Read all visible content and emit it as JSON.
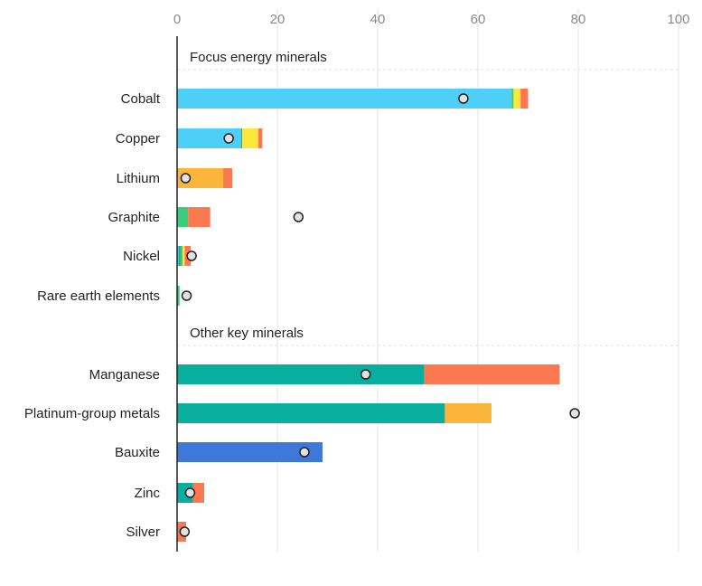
{
  "chart_data": {
    "type": "bar",
    "orientation": "horizontal",
    "stacked": true,
    "title": "",
    "xlabel": "",
    "ylabel": "",
    "xlim": [
      0,
      100
    ],
    "x_ticks": [
      "0",
      "20",
      "40",
      "60",
      "80",
      "100"
    ],
    "x_tick_values": [
      0,
      20,
      40,
      60,
      80,
      100
    ],
    "grid": true,
    "legend": "none",
    "colors": {
      "c1": "#4dcff8",
      "c2": "#0aae9f",
      "c3": "#38cf7c",
      "c4": "#fce83a",
      "c5": "#fbb53a",
      "c6": "#fb7850",
      "c7": "#3e78d8",
      "marker_fill": "#e2e2e2",
      "marker_stroke": "#222222",
      "grid": "#e3e3e3",
      "axis": "#222222"
    },
    "groups": [
      {
        "label": "Focus energy minerals",
        "items": [
          {
            "label": "Cobalt",
            "segments": [
              {
                "color": "c1",
                "value": 66.7
              },
              {
                "color": "c3",
                "value": 0.4
              },
              {
                "color": "c4",
                "value": 1.4
              },
              {
                "color": "c6",
                "value": 1.5
              }
            ],
            "marker": 57.1
          },
          {
            "label": "Copper",
            "segments": [
              {
                "color": "c1",
                "value": 12.8
              },
              {
                "color": "c2",
                "value": 0.2
              },
              {
                "color": "c4",
                "value": 3.2
              },
              {
                "color": "c6",
                "value": 0.8
              }
            ],
            "marker": 10.3
          },
          {
            "label": "Lithium",
            "segments": [
              {
                "color": "c5",
                "value": 9.2
              },
              {
                "color": "c6",
                "value": 1.8
              }
            ],
            "marker": 1.7
          },
          {
            "label": "Graphite",
            "segments": [
              {
                "color": "c3",
                "value": 2.2
              },
              {
                "color": "c6",
                "value": 4.4
              }
            ],
            "marker": 24.2
          },
          {
            "label": "Nickel",
            "segments": [
              {
                "color": "c1",
                "value": 0.3
              },
              {
                "color": "c2",
                "value": 0.4
              },
              {
                "color": "c3",
                "value": 0.4
              },
              {
                "color": "c4",
                "value": 0.4
              },
              {
                "color": "c6",
                "value": 1.2
              }
            ],
            "marker": 2.9
          },
          {
            "label": "Rare earth elements",
            "segments": [
              {
                "color": "c3",
                "value": 0.5
              }
            ],
            "marker": 1.9
          }
        ]
      },
      {
        "label": "Other key minerals",
        "items": [
          {
            "label": "Manganese",
            "segments": [
              {
                "color": "c2",
                "value": 49.3
              },
              {
                "color": "c6",
                "value": 27.0
              }
            ],
            "marker": 37.6
          },
          {
            "label": "Platinum-group metals",
            "segments": [
              {
                "color": "c2",
                "value": 53.4
              },
              {
                "color": "c5",
                "value": 9.3
              }
            ],
            "marker": 79.3
          },
          {
            "label": "Bauxite",
            "segments": [
              {
                "color": "c7",
                "value": 29.0
              }
            ],
            "marker": 25.4
          },
          {
            "label": "Zinc",
            "segments": [
              {
                "color": "c2",
                "value": 3.2
              },
              {
                "color": "c6",
                "value": 2.2
              }
            ],
            "marker": 2.6
          },
          {
            "label": "Silver",
            "segments": [
              {
                "color": "c6",
                "value": 1.8
              }
            ],
            "marker": 1.5
          }
        ]
      }
    ]
  }
}
